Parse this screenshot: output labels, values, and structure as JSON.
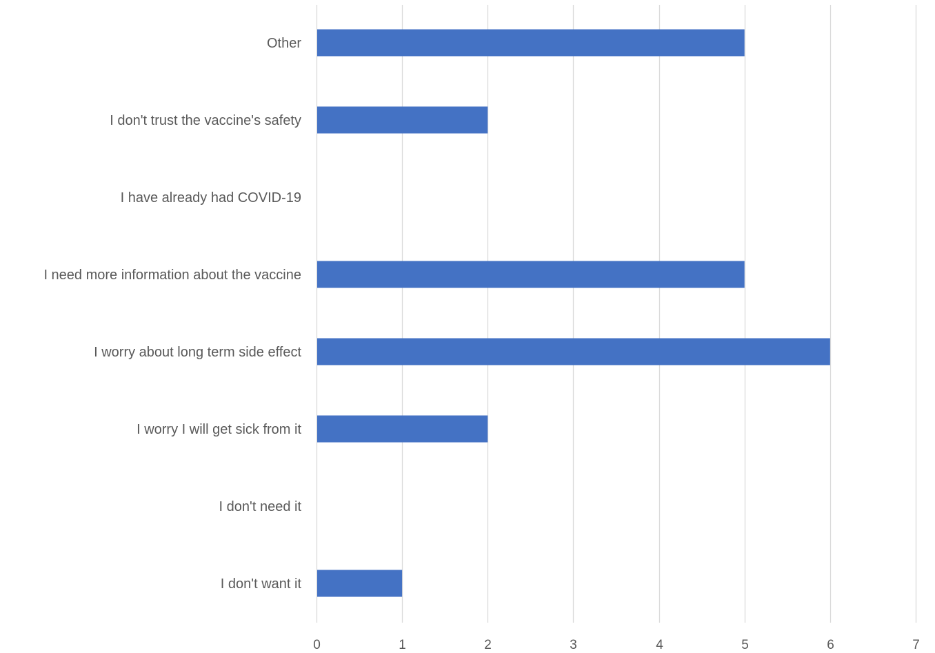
{
  "chart_data": {
    "type": "bar",
    "orientation": "horizontal",
    "categories": [
      "Other ",
      "I don't trust the vaccine's safety",
      "I have already had COVID-19",
      "I need more information about the vaccine",
      "I worry about long term side effect ",
      "I worry I will get sick from it ",
      "I don't need it ",
      "I don't want it"
    ],
    "series": [
      {
        "values": [
          5,
          2,
          0,
          5,
          6,
          2,
          0,
          1
        ],
        "color": "#4472c4"
      }
    ],
    "xlim": [
      0,
      7
    ],
    "xticks": [
      "0",
      "1",
      "2",
      "3",
      "4",
      "5",
      "6",
      "7"
    ],
    "grid": true,
    "gridline_color": "#d9d9d9",
    "title": "",
    "xlabel": "",
    "ylabel": "",
    "legend": "none"
  }
}
